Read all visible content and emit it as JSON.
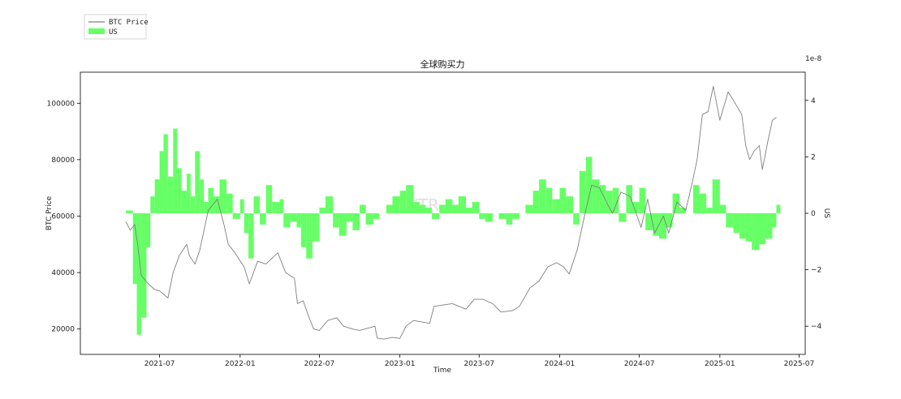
{
  "chart_data": {
    "type": "line",
    "title": "全球购买力",
    "xlabel": "Time",
    "ylabel_left": "BTC Price",
    "ylabel_right": "US",
    "right_axis_offset_label": "1e-8",
    "watermark": "WTR",
    "legend": {
      "placement": "top-left-outside",
      "entries": [
        "BTC Price",
        "US"
      ]
    },
    "x_ticks": [
      "2021-07",
      "2022-01",
      "2022-07",
      "2023-01",
      "2023-07",
      "2024-01",
      "2024-07",
      "2025-01",
      "2025-07"
    ],
    "x_range": [
      "2021-01-01",
      "2025-07-15"
    ],
    "left_ylim": [
      11000,
      111000
    ],
    "left_ticks": [
      20000,
      40000,
      60000,
      80000,
      100000
    ],
    "right_ylim": [
      -5.0,
      5.0
    ],
    "right_ticks": [
      -4,
      -2,
      0,
      2,
      4
    ],
    "colors": {
      "price": "#7f7f7f",
      "us": "#66ff66"
    },
    "series": [
      {
        "name": "BTC Price",
        "type": "line",
        "x": [
          "2021-04-15",
          "2021-04-25",
          "2021-05-05",
          "2021-05-12",
          "2021-05-20",
          "2021-05-25",
          "2021-06-05",
          "2021-06-20",
          "2021-07-01",
          "2021-07-20",
          "2021-08-01",
          "2021-08-15",
          "2021-09-01",
          "2021-09-07",
          "2021-09-20",
          "2021-10-01",
          "2021-10-20",
          "2021-11-10",
          "2021-11-25",
          "2021-12-05",
          "2021-12-20",
          "2022-01-10",
          "2022-01-22",
          "2022-02-10",
          "2022-03-01",
          "2022-03-28",
          "2022-04-15",
          "2022-05-05",
          "2022-05-12",
          "2022-05-25",
          "2022-06-10",
          "2022-06-18",
          "2022-07-01",
          "2022-07-20",
          "2022-08-10",
          "2022-08-25",
          "2022-09-15",
          "2022-10-01",
          "2022-10-25",
          "2022-11-05",
          "2022-11-10",
          "2022-11-25",
          "2022-12-15",
          "2023-01-01",
          "2023-01-15",
          "2023-02-01",
          "2023-03-10",
          "2023-03-20",
          "2023-04-10",
          "2023-05-01",
          "2023-06-01",
          "2023-06-20",
          "2023-07-10",
          "2023-08-01",
          "2023-08-20",
          "2023-09-15",
          "2023-10-01",
          "2023-10-25",
          "2023-11-15",
          "2023-12-05",
          "2023-12-25",
          "2024-01-10",
          "2024-01-23",
          "2024-02-10",
          "2024-02-28",
          "2024-03-14",
          "2024-04-01",
          "2024-04-20",
          "2024-05-01",
          "2024-05-20",
          "2024-06-10",
          "2024-07-05",
          "2024-07-20",
          "2024-08-05",
          "2024-08-25",
          "2024-09-06",
          "2024-09-25",
          "2024-10-15",
          "2024-10-30",
          "2024-11-10",
          "2024-11-22",
          "2024-12-05",
          "2024-12-17",
          "2025-01-01",
          "2025-01-20",
          "2025-02-01",
          "2025-02-20",
          "2025-03-01",
          "2025-03-10",
          "2025-03-20",
          "2025-04-01",
          "2025-04-08",
          "2025-04-20",
          "2025-05-01",
          "2025-05-10"
        ],
        "values": [
          58000,
          55000,
          57000,
          50000,
          39000,
          38000,
          36000,
          34000,
          33500,
          31000,
          40000,
          46000,
          50000,
          46000,
          43000,
          48000,
          62000,
          66000,
          57000,
          50000,
          47000,
          42000,
          36000,
          44000,
          43000,
          47000,
          40000,
          38000,
          29000,
          30000,
          23000,
          20000,
          19500,
          23000,
          24000,
          21000,
          20000,
          19500,
          20500,
          21000,
          16800,
          16400,
          17000,
          16700,
          21000,
          23000,
          22000,
          28000,
          28500,
          29000,
          27000,
          30500,
          30500,
          29000,
          26000,
          26500,
          28000,
          34500,
          37000,
          42000,
          43500,
          42000,
          39500,
          48000,
          61000,
          71000,
          70000,
          64000,
          61000,
          68500,
          67000,
          56000,
          66000,
          54000,
          60000,
          54000,
          65000,
          62000,
          72000,
          80000,
          96000,
          97000,
          106000,
          94000,
          104000,
          101000,
          96000,
          85000,
          80000,
          83000,
          85000,
          76500,
          86000,
          94000,
          95000
        ]
      },
      {
        "name": "US",
        "type": "bar",
        "axis": "right",
        "x": [
          "2021-04-15",
          "2021-05-01",
          "2021-05-10",
          "2021-05-20",
          "2021-06-01",
          "2021-06-10",
          "2021-06-20",
          "2021-07-01",
          "2021-07-10",
          "2021-07-20",
          "2021-08-01",
          "2021-08-10",
          "2021-08-20",
          "2021-09-01",
          "2021-09-10",
          "2021-09-20",
          "2021-10-01",
          "2021-10-10",
          "2021-10-20",
          "2021-11-01",
          "2021-11-15",
          "2021-12-01",
          "2021-12-15",
          "2022-01-01",
          "2022-01-10",
          "2022-01-20",
          "2022-02-01",
          "2022-02-15",
          "2022-03-01",
          "2022-03-15",
          "2022-04-01",
          "2022-04-10",
          "2022-04-25",
          "2022-05-10",
          "2022-05-20",
          "2022-06-01",
          "2022-06-15",
          "2022-07-01",
          "2022-07-15",
          "2022-08-01",
          "2022-08-15",
          "2022-09-01",
          "2022-09-15",
          "2022-10-01",
          "2022-10-15",
          "2022-11-01",
          "2022-11-15",
          "2022-12-01",
          "2022-12-15",
          "2023-01-01",
          "2023-01-15",
          "2023-02-01",
          "2023-02-15",
          "2023-03-01",
          "2023-03-15",
          "2023-04-01",
          "2023-04-15",
          "2023-05-01",
          "2023-05-15",
          "2023-06-01",
          "2023-06-15",
          "2023-07-01",
          "2023-07-15",
          "2023-08-01",
          "2023-08-15",
          "2023-09-01",
          "2023-09-15",
          "2023-10-01",
          "2023-10-15",
          "2023-11-01",
          "2023-11-15",
          "2023-12-01",
          "2023-12-15",
          "2024-01-01",
          "2024-01-15",
          "2024-02-01",
          "2024-02-15",
          "2024-03-01",
          "2024-03-15",
          "2024-04-01",
          "2024-04-15",
          "2024-05-01",
          "2024-05-15",
          "2024-06-01",
          "2024-06-15",
          "2024-07-01",
          "2024-07-15",
          "2024-08-01",
          "2024-08-15",
          "2024-09-01",
          "2024-09-15",
          "2024-10-01",
          "2024-10-15",
          "2024-11-01",
          "2024-11-15",
          "2024-12-01",
          "2024-12-15",
          "2025-01-01",
          "2025-01-15",
          "2025-02-01",
          "2025-02-15",
          "2025-03-01",
          "2025-03-15",
          "2025-04-01",
          "2025-04-15",
          "2025-05-01",
          "2025-05-10"
        ],
        "values": [
          0.1,
          -2.5,
          -4.3,
          -3.7,
          -1.2,
          0.6,
          1.2,
          2.2,
          2.8,
          1.3,
          3.0,
          1.6,
          0.8,
          1.4,
          0.6,
          2.2,
          1.2,
          0.4,
          0.9,
          0.6,
          1.2,
          0.7,
          -0.2,
          0.5,
          -0.7,
          -1.6,
          0.6,
          -0.4,
          1.0,
          0.4,
          0.5,
          -0.5,
          -0.3,
          -0.5,
          -1.2,
          -1.6,
          -1.0,
          0.2,
          0.6,
          -0.5,
          -0.8,
          -0.3,
          -0.6,
          0.3,
          -0.4,
          -0.2,
          0.0,
          0.3,
          0.6,
          0.8,
          1.0,
          0.4,
          0.3,
          0.2,
          -0.2,
          0.3,
          0.5,
          0.3,
          0.6,
          0.2,
          0.4,
          -0.2,
          -0.3,
          0.0,
          -0.2,
          -0.4,
          -0.2,
          0.0,
          0.3,
          0.8,
          1.2,
          0.9,
          0.5,
          0.9,
          0.6,
          -0.4,
          1.5,
          2.0,
          1.2,
          1.0,
          0.8,
          0.9,
          -0.3,
          1.0,
          0.4,
          0.9,
          -0.6,
          -0.8,
          -0.9,
          -0.5,
          0.7,
          0.2,
          0.0,
          1.0,
          0.7,
          0.2,
          1.2,
          0.3,
          -0.5,
          -0.7,
          -0.9,
          -1.0,
          -1.3,
          -1.1,
          -0.9,
          -0.5,
          0.3
        ]
      }
    ]
  }
}
